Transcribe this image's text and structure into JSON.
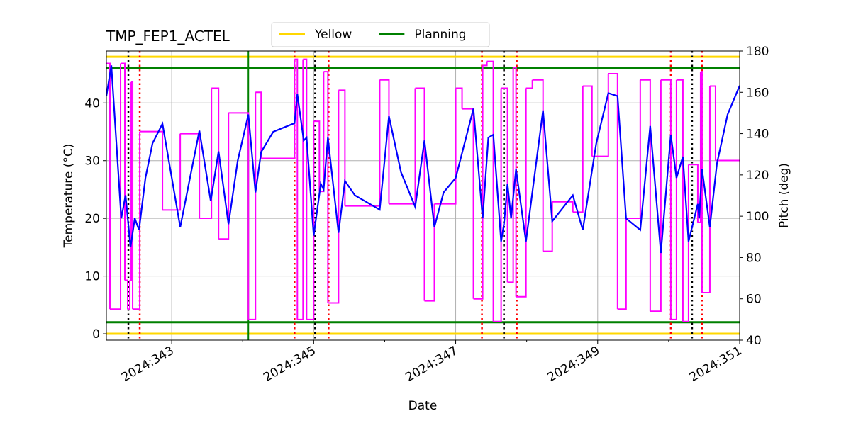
{
  "chart_data": {
    "type": "line",
    "title": "TMP_FEP1_ACTEL",
    "xlabel": "Date",
    "ylabel": "Temperature (°C)",
    "y2label": "Pitch (deg)",
    "y2color": "#ff00ff",
    "xlim": [
      342.08,
      351
    ],
    "xticks": [
      {
        "value": 343,
        "label": "2024:343"
      },
      {
        "value": 345,
        "label": "2024:345"
      },
      {
        "value": 347,
        "label": "2024:347"
      },
      {
        "value": 349,
        "label": "2024:349"
      },
      {
        "value": 351,
        "label": "2024:351"
      }
    ],
    "xminorticks": [
      344,
      346,
      348,
      350
    ],
    "ylim": [
      -1.1,
      49
    ],
    "yticks": [
      0,
      10,
      20,
      30,
      40
    ],
    "y2lim": [
      40,
      180
    ],
    "y2ticks": [
      40,
      60,
      80,
      100,
      120,
      140,
      160,
      180
    ],
    "grid": true,
    "legend": "top",
    "limit_lines": [
      {
        "name": "Yellow",
        "color": "#ffd700",
        "values": [
          48,
          0
        ]
      },
      {
        "name": "Planning",
        "color": "#008000",
        "values": [
          46,
          2
        ]
      }
    ],
    "vlines": [
      {
        "color": "#008000",
        "style": "solid",
        "x": [
          344.08
        ]
      },
      {
        "color": "#000000",
        "style": "dotted",
        "x": [
          342.39,
          345.02,
          347.68,
          350.33
        ]
      },
      {
        "color": "#ff0000",
        "style": "dotted",
        "x": [
          342.55,
          344.73,
          345.21,
          347.37,
          347.86,
          350.03,
          350.47
        ]
      }
    ],
    "series": [
      {
        "color": "#ff00ff",
        "axis": "y2",
        "step": "post",
        "x": [
          342.08,
          342.13,
          342.28,
          342.34,
          342.38,
          342.41,
          342.43,
          342.45,
          342.55,
          342.87,
          343.12,
          343.39,
          343.56,
          343.66,
          343.8,
          344.08,
          344.18,
          344.26,
          344.73,
          344.77,
          344.85,
          344.9,
          345.0,
          345.08,
          345.14,
          345.2,
          345.35,
          345.44,
          345.93,
          346.06,
          346.43,
          346.56,
          346.7,
          347.0,
          347.09,
          347.25,
          347.38,
          347.44,
          347.53,
          347.64,
          347.73,
          347.81,
          347.85,
          347.99,
          348.08,
          348.23,
          348.36,
          348.65,
          348.79,
          348.92,
          349.15,
          349.28,
          349.4,
          349.6,
          349.74,
          349.89,
          350.03,
          350.11,
          350.2,
          350.28,
          350.41,
          350.45,
          350.47,
          350.58,
          350.66,
          351
        ],
        "values": [
          174,
          55,
          174,
          69,
          55,
          69,
          165,
          55,
          141,
          103,
          140,
          99,
          162,
          89,
          150,
          50,
          160,
          128,
          176,
          50,
          176,
          50,
          146,
          112,
          170,
          58,
          161,
          105,
          166,
          106,
          162,
          59,
          106,
          162,
          152,
          60,
          173,
          175,
          49,
          162,
          68,
          172,
          61,
          162,
          166,
          83,
          107,
          102,
          163,
          129,
          169,
          55,
          99,
          166,
          54,
          166,
          50,
          166,
          49,
          125,
          97,
          170,
          63,
          163,
          127,
          127
        ]
      },
      {
        "color": "#0000ff",
        "axis": "y",
        "x": [
          342.08,
          342.15,
          342.29,
          342.35,
          342.42,
          342.48,
          342.54,
          342.63,
          342.73,
          342.87,
          343.12,
          343.39,
          343.55,
          343.66,
          343.8,
          343.93,
          344.08,
          344.18,
          344.26,
          344.43,
          344.73,
          344.77,
          344.86,
          344.9,
          345.0,
          345.1,
          345.14,
          345.2,
          345.35,
          345.44,
          345.58,
          345.93,
          346.06,
          346.23,
          346.43,
          346.56,
          346.7,
          346.83,
          347.0,
          347.25,
          347.38,
          347.46,
          347.53,
          347.64,
          347.68,
          347.73,
          347.78,
          347.85,
          347.99,
          348.23,
          348.36,
          348.65,
          348.79,
          348.98,
          349.15,
          349.28,
          349.4,
          349.6,
          349.74,
          349.89,
          350.03,
          350.11,
          350.2,
          350.28,
          350.41,
          350.43,
          350.47,
          350.58,
          350.68,
          350.83,
          351
        ],
        "values": [
          41.2,
          46.5,
          20,
          24,
          15,
          20,
          18,
          27,
          33,
          36.4,
          18.5,
          35.2,
          23,
          31.6,
          19,
          30,
          38,
          24.5,
          31.5,
          35,
          36.5,
          41.5,
          33.5,
          34,
          17,
          26,
          25,
          34,
          17.5,
          26.5,
          24,
          21.5,
          37.7,
          28,
          22,
          33.5,
          18.5,
          24.5,
          27,
          39,
          20,
          34,
          34.5,
          16,
          19,
          26,
          20,
          28.5,
          16,
          38.7,
          19.5,
          24,
          18,
          33,
          41.7,
          41.2,
          20,
          18,
          36,
          14,
          34.5,
          27,
          30.7,
          16,
          22.5,
          20,
          28.5,
          18.5,
          29.5,
          38,
          43
        ]
      }
    ]
  }
}
